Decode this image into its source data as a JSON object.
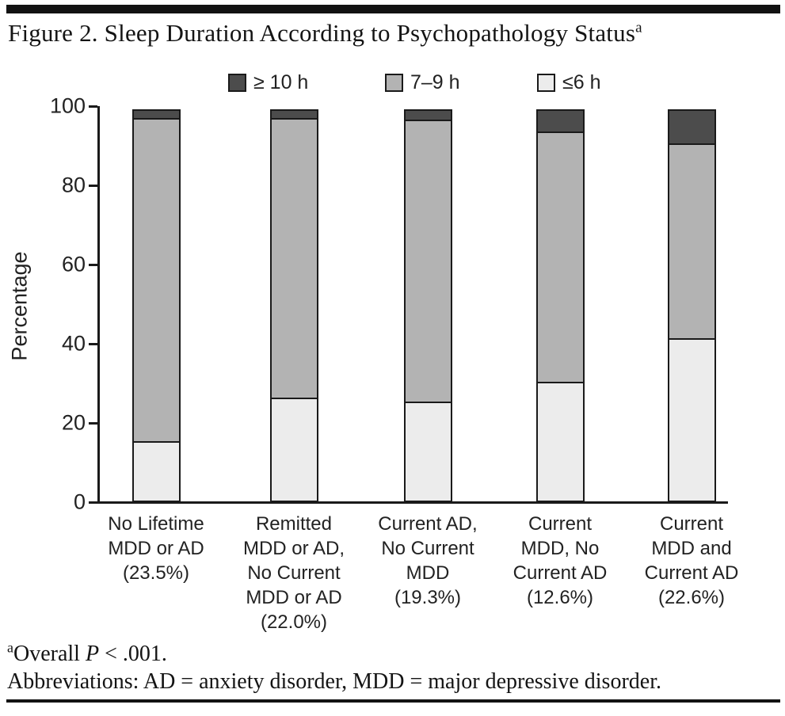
{
  "figure": {
    "title": "Figure 2. Sleep Duration According to Psychopathology Status",
    "title_superscript": "a",
    "footnote_marker": "a",
    "footnote_overall": {
      "pre": "Overall ",
      "italic": "P",
      "post": " < .001."
    },
    "footnote_abbreviations": "Abbreviations: AD = anxiety disorder, MDD = major depressive disorder."
  },
  "chart_data": {
    "type": "bar",
    "stacked": true,
    "title": "Sleep Duration According to Psychopathology Status",
    "xlabel": "",
    "ylabel": "Percentage",
    "ylim": [
      0,
      100
    ],
    "yticks": [
      0,
      20,
      40,
      60,
      80,
      100
    ],
    "grid": false,
    "legend_position": "top",
    "legend": [
      {
        "label": "≥ 10 h",
        "color": "#4c4c4c"
      },
      {
        "label": "7–9 h",
        "color": "#b3b3b3"
      },
      {
        "label": "≤6 h",
        "color": "#ececec"
      }
    ],
    "categories": [
      "No Lifetime MDD or AD (23.5%)",
      "Remitted MDD or AD, No Current MDD or AD (22.0%)",
      "Current AD, No Current MDD (19.3%)",
      "Current MDD, No Current AD (12.6%)",
      "Current MDD and Current AD (22.6%)"
    ],
    "category_lines": [
      [
        "No Lifetime",
        "MDD or AD",
        "(23.5%)"
      ],
      [
        "Remitted",
        "MDD or AD,",
        "No Current",
        "MDD or AD",
        "(22.0%)"
      ],
      [
        "Current AD,",
        "No Current",
        "MDD",
        "(19.3%)"
      ],
      [
        "Current",
        "MDD, No",
        "Current AD",
        "(12.6%)"
      ],
      [
        "Current",
        "MDD and",
        "Current AD",
        "(22.6%)"
      ]
    ],
    "series": [
      {
        "name": "≤6 h",
        "color": "#ececec",
        "values": [
          15.5,
          26.5,
          25.5,
          30.5,
          41.5
        ]
      },
      {
        "name": "7–9 h",
        "color": "#b3b3b3",
        "values": [
          82.0,
          71.0,
          71.5,
          63.5,
          49.5
        ]
      },
      {
        "name": "≥ 10 h",
        "color": "#4c4c4c",
        "values": [
          2.5,
          2.5,
          3.0,
          6.0,
          9.0
        ]
      }
    ],
    "axis_color": "#1a1a1a"
  }
}
